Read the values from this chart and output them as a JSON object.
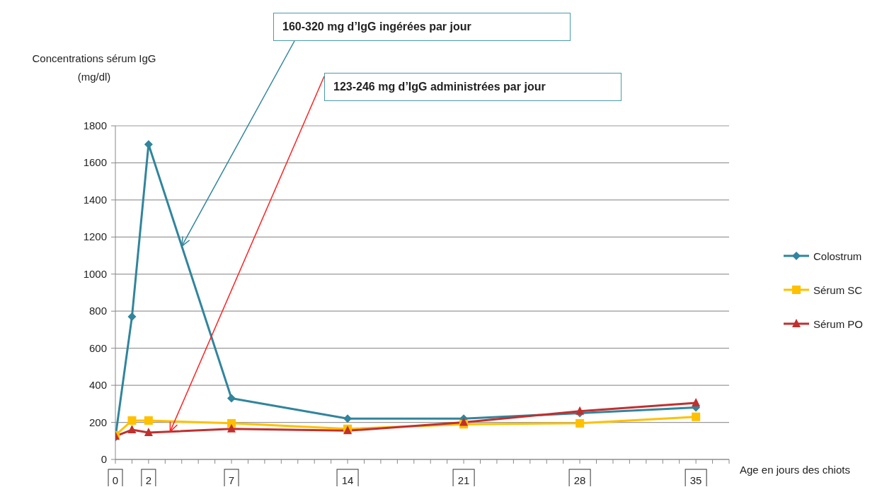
{
  "chart_data": {
    "type": "line",
    "ylabel": "Concentrations sérum IgG\n(mg/dl)",
    "xlabel": "Age en jours des chiots",
    "x": [
      0,
      1,
      2,
      7,
      14,
      21,
      28,
      35
    ],
    "series": [
      {
        "name": "Colostrum",
        "color": "#31859c",
        "marker": "diamond",
        "values": [
          120,
          770,
          1700,
          330,
          220,
          220,
          250,
          280
        ]
      },
      {
        "name": "Sérum SC",
        "color": "#ffc000",
        "marker": "square",
        "values": [
          130,
          210,
          210,
          195,
          165,
          190,
          195,
          230
        ]
      },
      {
        "name": "Sérum PO",
        "color": "#c0302f",
        "marker": "triangle",
        "values": [
          125,
          160,
          145,
          165,
          155,
          200,
          260,
          305
        ]
      }
    ],
    "xlim": [
      0,
      37
    ],
    "xticks": [
      0,
      {
        "value": 1,
        "label": null
      },
      2,
      {
        "value": 3,
        "label": null
      },
      {
        "value": 4,
        "label": null
      },
      {
        "value": 5,
        "label": null
      },
      {
        "value": 6,
        "label": null
      },
      7,
      {
        "value": 8,
        "label": null
      },
      {
        "value": 9,
        "label": null
      },
      {
        "value": 10,
        "label": null
      },
      {
        "value": 11,
        "label": null
      },
      {
        "value": 12,
        "label": null
      },
      {
        "value": 13,
        "label": null
      },
      14,
      {
        "value": 15,
        "label": null
      },
      {
        "value": 16,
        "label": null
      },
      {
        "value": 17,
        "label": null
      },
      {
        "value": 18,
        "label": null
      },
      {
        "value": 19,
        "label": null
      },
      {
        "value": 20,
        "label": null
      },
      21,
      {
        "value": 22,
        "label": null
      },
      {
        "value": 23,
        "label": null
      },
      {
        "value": 24,
        "label": null
      },
      {
        "value": 25,
        "label": null
      },
      {
        "value": 26,
        "label": null
      },
      {
        "value": 27,
        "label": null
      },
      28,
      {
        "value": 29,
        "label": null
      },
      {
        "value": 30,
        "label": null
      },
      {
        "value": 31,
        "label": null
      },
      {
        "value": 32,
        "label": null
      },
      {
        "value": 33,
        "label": null
      },
      {
        "value": 34,
        "label": null
      },
      35,
      {
        "value": 36,
        "label": null
      },
      {
        "value": 37,
        "label": null
      }
    ],
    "ylim": [
      0,
      1800
    ],
    "yticks": [
      0,
      200,
      400,
      600,
      800,
      1000,
      1200,
      1400,
      1600,
      1800
    ],
    "grid": "y",
    "legend": "right",
    "line_style": "solid",
    "annotations": [
      {
        "text": "160-320 mg d’IgG ingérées par jour",
        "x": 4,
        "y": 1150
      },
      {
        "text": "123-246 mg d’IgG administrées par jour",
        "x": 3.3,
        "y": 150
      }
    ]
  }
}
